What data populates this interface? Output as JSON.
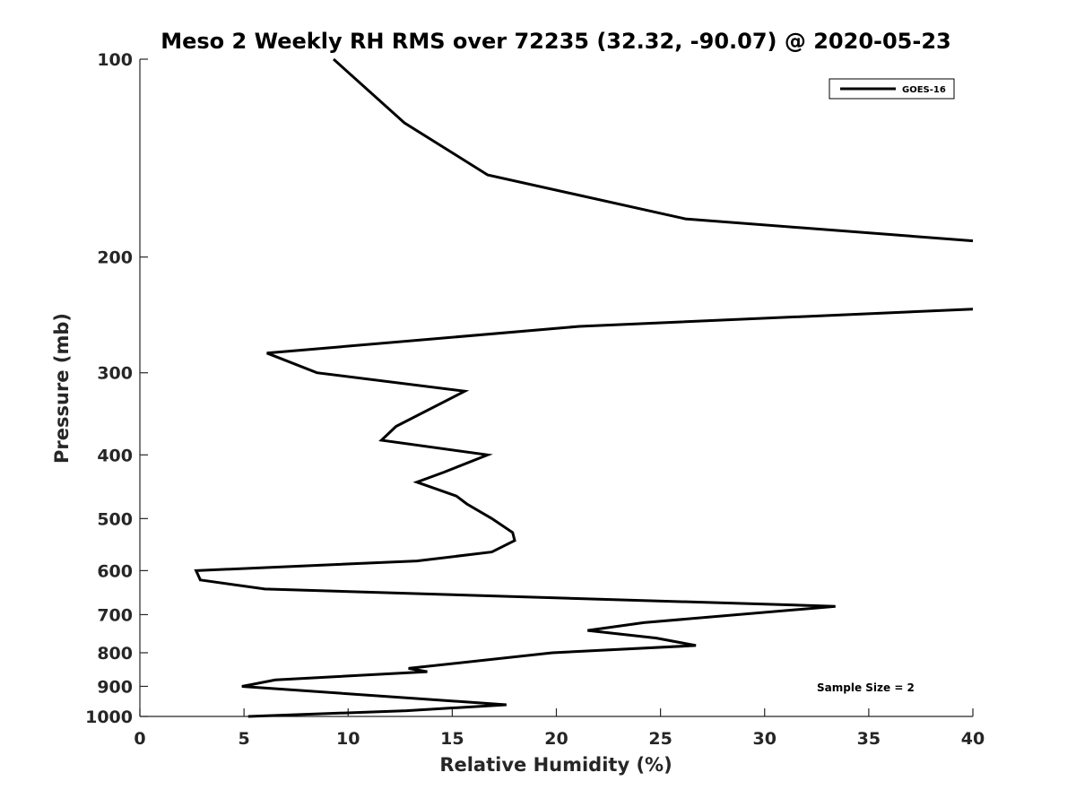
{
  "chart_data": {
    "type": "line",
    "title": "Meso 2 Weekly RH RMS over 72235 (32.32, -90.07) @ 2020-05-23",
    "xlabel": "Relative Humidity (%)",
    "ylabel": "Pressure (mb)",
    "xlim": [
      0,
      40
    ],
    "ylim": [
      100,
      1000
    ],
    "y_scale": "log",
    "y_reversed": true,
    "grid": false,
    "legend_position": "top-right",
    "xticks": [
      0,
      5,
      10,
      15,
      20,
      25,
      30,
      35,
      40
    ],
    "yticks": [
      100,
      200,
      300,
      400,
      500,
      600,
      700,
      800,
      900,
      1000
    ],
    "series": [
      {
        "name": "GOES-16",
        "color": "#000000",
        "points": [
          {
            "x": 9.3,
            "y": 100
          },
          {
            "x": 12.7,
            "y": 125
          },
          {
            "x": 16.7,
            "y": 150
          },
          {
            "x": 26.2,
            "y": 175
          },
          {
            "x": 40.0,
            "y": 189
          },
          {
            "x": null,
            "y": null
          },
          {
            "x": 40.0,
            "y": 240
          },
          {
            "x": 21.1,
            "y": 255
          },
          {
            "x": 6.1,
            "y": 280
          },
          {
            "x": 8.5,
            "y": 300
          },
          {
            "x": 15.6,
            "y": 320
          },
          {
            "x": 12.3,
            "y": 362
          },
          {
            "x": 11.6,
            "y": 380
          },
          {
            "x": 16.7,
            "y": 400
          },
          {
            "x": 14.6,
            "y": 425
          },
          {
            "x": 13.3,
            "y": 440
          },
          {
            "x": 15.2,
            "y": 462
          },
          {
            "x": 15.7,
            "y": 475
          },
          {
            "x": 16.9,
            "y": 500
          },
          {
            "x": 17.9,
            "y": 525
          },
          {
            "x": 18.0,
            "y": 540
          },
          {
            "x": 16.9,
            "y": 562
          },
          {
            "x": 13.3,
            "y": 580
          },
          {
            "x": 2.7,
            "y": 600
          },
          {
            "x": 2.9,
            "y": 620
          },
          {
            "x": 6.0,
            "y": 640
          },
          {
            "x": 33.4,
            "y": 680
          },
          {
            "x": 24.2,
            "y": 720
          },
          {
            "x": 21.5,
            "y": 740
          },
          {
            "x": 24.8,
            "y": 760
          },
          {
            "x": 26.7,
            "y": 780
          },
          {
            "x": 19.8,
            "y": 800
          },
          {
            "x": 12.9,
            "y": 845
          },
          {
            "x": 13.8,
            "y": 855
          },
          {
            "x": 6.5,
            "y": 880
          },
          {
            "x": 4.9,
            "y": 900
          },
          {
            "x": 17.6,
            "y": 960
          },
          {
            "x": 12.8,
            "y": 980
          },
          {
            "x": 5.2,
            "y": 1000
          }
        ]
      }
    ],
    "annotations": [
      {
        "text": "Sample Size = 2",
        "position": "bottom-right"
      }
    ]
  }
}
